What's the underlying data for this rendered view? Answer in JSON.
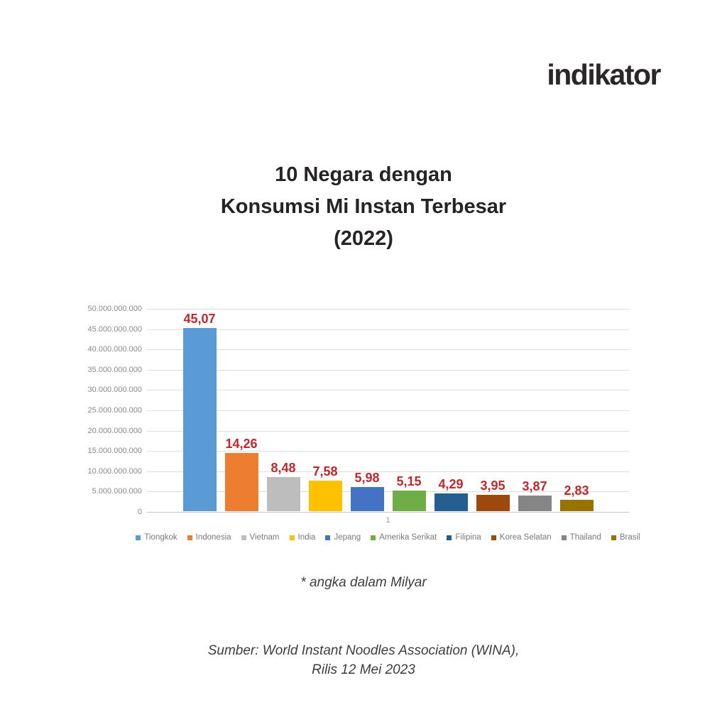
{
  "brand": {
    "logo_text": "indikator"
  },
  "title": {
    "line1": "10 Negara dengan",
    "line2": "Konsumsi Mi Instan Terbesar",
    "line3": "(2022)"
  },
  "footnote": "* angka dalam Milyar",
  "source": {
    "line1": "Sumber: World Instant Noodles Association (WINA),",
    "line2": "Rilis 12 Mei 2023"
  },
  "chart_data": {
    "type": "bar",
    "title": "10 Negara dengan Konsumsi Mi Instan Terbesar (2022)",
    "unit_note": "angka dalam Milyar",
    "x_category_label": "1",
    "ylim": [
      0,
      50000000000
    ],
    "grid": true,
    "legend_position": "bottom",
    "value_label_color": "#C3262B",
    "y_tick_labels": [
      "50.000.000.000",
      "45.000.000.000",
      "40.000.000.000",
      "35.000.000.000",
      "30.000.000.000",
      "25.000.000.000",
      "20.000.000.000",
      "15.000.000.000",
      "10.000.000.000",
      "5.000.000.000",
      "0"
    ],
    "series": [
      {
        "name": "Tiongkok",
        "value": 45070000000,
        "label": "45,07",
        "color": "#5B9BD5"
      },
      {
        "name": "Indonesia",
        "value": 14260000000,
        "label": "14,26",
        "color": "#ED7D31"
      },
      {
        "name": "Vietnam",
        "value": 8480000000,
        "label": "8,48",
        "color": "#BDBDBD"
      },
      {
        "name": "India",
        "value": 7580000000,
        "label": "7,58",
        "color": "#FFC000"
      },
      {
        "name": "Jepang",
        "value": 5980000000,
        "label": "5,98",
        "color": "#4472C4"
      },
      {
        "name": "Amerika Serikat",
        "value": 5150000000,
        "label": "5,15",
        "color": "#70AD47"
      },
      {
        "name": "Filipina",
        "value": 4290000000,
        "label": "4,29",
        "color": "#255E91"
      },
      {
        "name": "Korea Selatan",
        "value": 3950000000,
        "label": "3,95",
        "color": "#9E480E"
      },
      {
        "name": "Thailand",
        "value": 3870000000,
        "label": "3,87",
        "color": "#858585"
      },
      {
        "name": "Brasil",
        "value": 2830000000,
        "label": "2,83",
        "color": "#997300"
      }
    ]
  }
}
